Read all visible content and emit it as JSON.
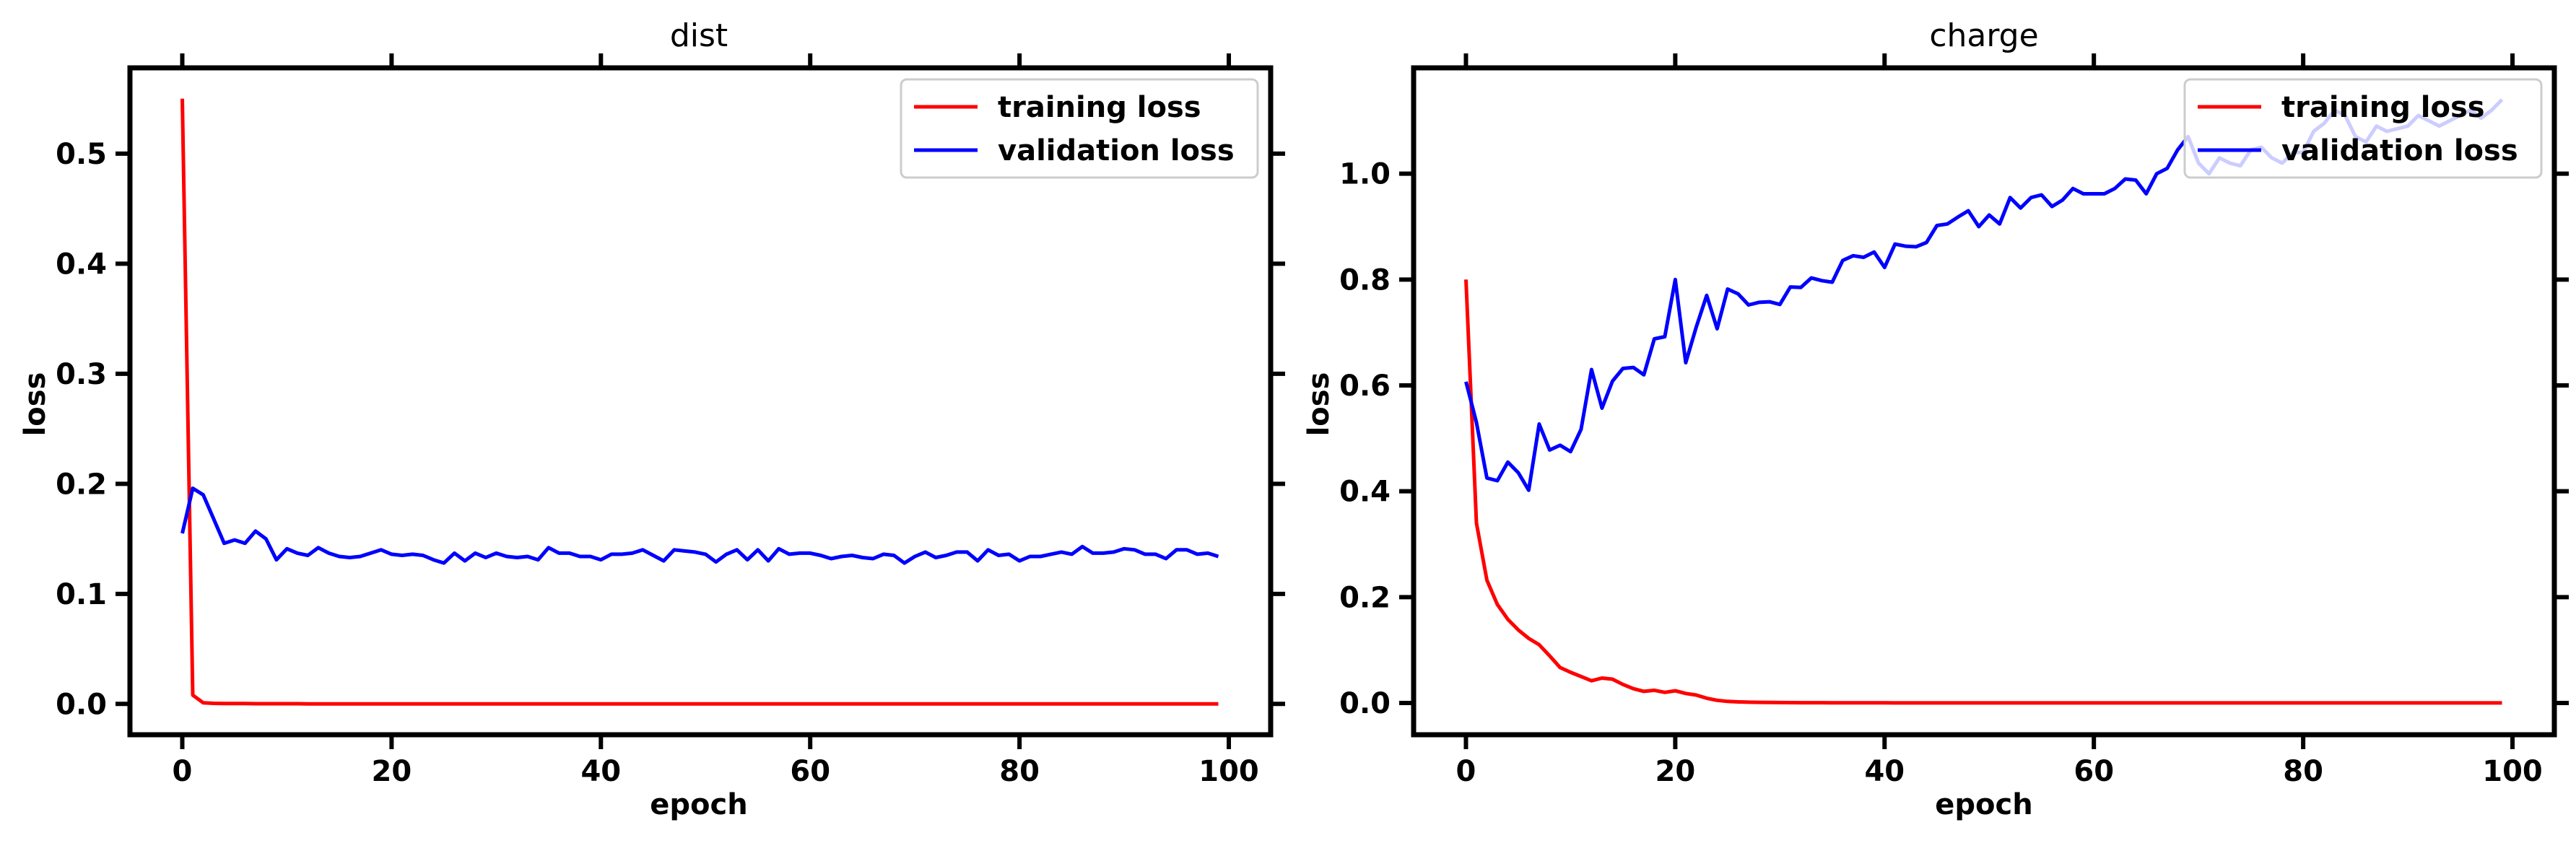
{
  "chart_data": [
    {
      "type": "line",
      "title": "dist",
      "xlabel": "epoch",
      "ylabel": "loss",
      "xlim": [
        -5,
        104
      ],
      "ylim": [
        -0.028,
        0.578
      ],
      "xticks": [
        0,
        20,
        40,
        60,
        80,
        100
      ],
      "xtick_labels": [
        "0",
        "20",
        "40",
        "60",
        "80",
        "100"
      ],
      "yticks": [
        0.0,
        0.1,
        0.2,
        0.3,
        0.4,
        0.5
      ],
      "ytick_labels": [
        "0.0",
        "0.1",
        "0.2",
        "0.3",
        "0.4",
        "0.5"
      ],
      "legend_position": "top-right",
      "series": [
        {
          "name": "training loss",
          "color": "#ff0000",
          "values": [
            0.55,
            0.008,
            0.001,
            0.0005,
            0.0004,
            0.0003,
            0.0003,
            0.0002,
            0.0002,
            0.0002,
            0.0002,
            0.0002,
            0.0001,
            0.0001,
            0.0001,
            0.0001,
            0.0001,
            0.0001,
            0.0001,
            0.0001,
            0.0001,
            0.0001,
            0.0001,
            0.0001,
            0.0001,
            0.0001,
            0.0001,
            0.0001,
            0.0001,
            0.0001,
            0.0001,
            0.0001,
            0.0001,
            0.0001,
            0.0001,
            0.0001,
            0.0001,
            0.0001,
            0.0001,
            0.0001,
            0.0001,
            0.0001,
            0.0001,
            0.0001,
            0.0001,
            0.0001,
            0.0001,
            0.0001,
            0.0001,
            0.0001,
            0.0001,
            0.0001,
            0.0001,
            0.0001,
            0.0001,
            0.0001,
            0.0001,
            0.0001,
            0.0001,
            0.0001,
            0.0001,
            0.0001,
            0.0001,
            0.0001,
            0.0001,
            0.0001,
            0.0001,
            0.0001,
            0.0001,
            0.0001,
            0.0001,
            0.0001,
            0.0001,
            0.0001,
            0.0001,
            0.0001,
            0.0001,
            0.0001,
            0.0001,
            0.0001,
            0.0001,
            0.0001,
            0.0001,
            0.0001,
            0.0001,
            0.0001,
            0.0001,
            0.0001,
            0.0001,
            0.0001,
            0.0001,
            0.0001,
            0.0001,
            0.0001,
            0.0001,
            0.0001,
            0.0001,
            0.0001,
            0.0001,
            0.0001
          ]
        },
        {
          "name": "validation loss",
          "color": "#0000ff",
          "values": [
            0.155,
            0.196,
            0.19,
            0.168,
            0.146,
            0.149,
            0.146,
            0.157,
            0.15,
            0.131,
            0.141,
            0.137,
            0.135,
            0.142,
            0.137,
            0.134,
            0.133,
            0.134,
            0.137,
            0.14,
            0.136,
            0.135,
            0.136,
            0.135,
            0.131,
            0.128,
            0.137,
            0.13,
            0.137,
            0.133,
            0.137,
            0.134,
            0.133,
            0.134,
            0.131,
            0.142,
            0.137,
            0.137,
            0.134,
            0.134,
            0.131,
            0.136,
            0.136,
            0.137,
            0.14,
            0.135,
            0.13,
            0.14,
            0.139,
            0.138,
            0.136,
            0.129,
            0.136,
            0.14,
            0.131,
            0.14,
            0.13,
            0.141,
            0.136,
            0.137,
            0.137,
            0.135,
            0.132,
            0.134,
            0.135,
            0.133,
            0.132,
            0.136,
            0.135,
            0.128,
            0.134,
            0.138,
            0.133,
            0.135,
            0.138,
            0.138,
            0.13,
            0.14,
            0.135,
            0.136,
            0.13,
            0.134,
            0.134,
            0.136,
            0.138,
            0.136,
            0.143,
            0.137,
            0.137,
            0.138,
            0.141,
            0.14,
            0.136,
            0.136,
            0.132,
            0.14,
            0.14,
            0.136,
            0.137,
            0.134
          ]
        }
      ]
    },
    {
      "type": "line",
      "title": "charge",
      "xlabel": "epoch",
      "ylabel": "loss",
      "xlim": [
        -5,
        104
      ],
      "ylim": [
        -0.06,
        1.2
      ],
      "xticks": [
        0,
        20,
        40,
        60,
        80,
        100
      ],
      "xtick_labels": [
        "0",
        "20",
        "40",
        "60",
        "80",
        "100"
      ],
      "yticks": [
        0.0,
        0.2,
        0.4,
        0.6,
        0.8,
        1.0
      ],
      "ytick_labels": [
        "0.0",
        "0.2",
        "0.4",
        "0.6",
        "0.8",
        "1.0"
      ],
      "legend_position": "top-right",
      "series": [
        {
          "name": "training loss",
          "color": "#ff0000",
          "values": [
            0.8,
            0.34,
            0.232,
            0.186,
            0.158,
            0.138,
            0.122,
            0.11,
            0.089,
            0.067,
            0.058,
            0.05,
            0.042,
            0.047,
            0.045,
            0.035,
            0.027,
            0.022,
            0.024,
            0.02,
            0.023,
            0.018,
            0.015,
            0.009,
            0.005,
            0.003,
            0.002,
            0.0015,
            0.0012,
            0.001,
            0.0008,
            0.0007,
            0.0006,
            0.0005,
            0.0005,
            0.0004,
            0.0004,
            0.0003,
            0.0003,
            0.0003,
            0.0003,
            0.0002,
            0.0002,
            0.0002,
            0.0002,
            0.0002,
            0.0002,
            0.0002,
            0.0002,
            0.0001,
            0.0001,
            0.0001,
            0.0001,
            0.0001,
            0.0001,
            0.0001,
            0.0001,
            0.0001,
            0.0001,
            0.0001,
            0.0001,
            0.0001,
            0.0001,
            0.0001,
            0.0001,
            0.0001,
            0.0001,
            0.0001,
            0.0001,
            0.0001,
            0.0001,
            0.0001,
            0.0001,
            0.0001,
            0.0001,
            0.0001,
            0.0001,
            0.0001,
            0.0001,
            0.0001,
            0.0001,
            0.0001,
            0.0001,
            0.0001,
            0.0001,
            0.0001,
            0.0001,
            0.0001,
            0.0001,
            0.0001,
            0.0001,
            0.0001,
            0.0001,
            0.0001,
            0.0001,
            0.0001,
            0.0001,
            0.0001,
            0.0001,
            0.0001
          ]
        },
        {
          "name": "validation loss",
          "color": "#0000ff",
          "values": [
            0.607,
            0.53,
            0.425,
            0.42,
            0.455,
            0.435,
            0.402,
            0.527,
            0.478,
            0.487,
            0.475,
            0.517,
            0.63,
            0.557,
            0.608,
            0.632,
            0.634,
            0.62,
            0.688,
            0.692,
            0.8,
            0.643,
            0.71,
            0.77,
            0.707,
            0.782,
            0.773,
            0.752,
            0.757,
            0.758,
            0.753,
            0.786,
            0.785,
            0.803,
            0.798,
            0.795,
            0.836,
            0.845,
            0.842,
            0.852,
            0.823,
            0.867,
            0.863,
            0.862,
            0.87,
            0.902,
            0.905,
            0.918,
            0.93,
            0.9,
            0.922,
            0.905,
            0.955,
            0.935,
            0.955,
            0.96,
            0.938,
            0.95,
            0.972,
            0.962,
            0.962,
            0.962,
            0.972,
            0.99,
            0.988,
            0.962,
            1.0,
            1.01,
            1.045,
            1.07,
            1.02,
            1.0,
            1.03,
            1.02,
            1.015,
            1.045,
            1.05,
            1.03,
            1.02,
            1.04,
            1.04,
            1.08,
            1.095,
            1.12,
            1.11,
            1.07,
            1.06,
            1.09,
            1.08,
            1.085,
            1.09,
            1.11,
            1.1,
            1.09,
            1.1,
            1.11,
            1.12,
            1.105,
            1.12,
            1.14
          ]
        }
      ]
    }
  ]
}
